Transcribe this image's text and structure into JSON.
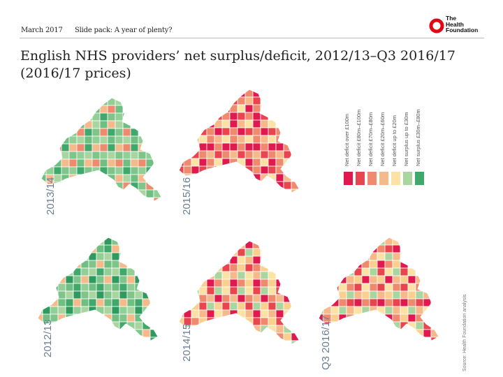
{
  "header": {
    "date": "March 2017",
    "slide_pack": "Slide pack: A year of plenty?",
    "logo_text": [
      "The",
      "Health",
      "Foundation"
    ]
  },
  "title": "English NHS providers’ net surplus/deficit, 2012/13–Q3 2016/17 (2016/17 prices)",
  "legend": [
    {
      "label": "Net deficit over £100m",
      "color": "#e01a4f"
    },
    {
      "label": "Net deficit £80m–£100m",
      "color": "#e8454e"
    },
    {
      "label": "Net deficit £70m–£80m",
      "color": "#ef8a6e"
    },
    {
      "label": "Net deficit £20m–£60m",
      "color": "#f6b98a"
    },
    {
      "label": "Net deficit up to £20m",
      "color": "#fde2a6"
    },
    {
      "label": "Net surplus up to £30m",
      "color": "#a9d6a0"
    },
    {
      "label": "Net surplus £30m–£80m",
      "color": "#3fa86a"
    }
  ],
  "maps": [
    {
      "period": "2013/14",
      "palette": [
        "#7fc58a",
        "#92cf96",
        "#a9d6a0",
        "#6fbf82",
        "#f6b98a",
        "#ef8a6e",
        "#3fa86a"
      ]
    },
    {
      "period": "2015/16",
      "palette": [
        "#e01a4f",
        "#e8454e",
        "#ef8a6e",
        "#f6b98a",
        "#fde2a6",
        "#e01a4f",
        "#ef8a6e"
      ]
    },
    {
      "period": "2012/13",
      "palette": [
        "#6fbf82",
        "#3fa86a",
        "#92cf96",
        "#a9d6a0",
        "#2e9a5e",
        "#7fc58a",
        "#f6b98a"
      ]
    },
    {
      "period": "2014/15",
      "palette": [
        "#fde2a6",
        "#f6b98a",
        "#e01a4f",
        "#ef8a6e",
        "#fbd08f",
        "#e8454e",
        "#a9d6a0"
      ]
    },
    {
      "period": "Q3 2016/17",
      "palette": [
        "#f6b98a",
        "#fbd08f",
        "#e01a4f",
        "#ef8a6e",
        "#e8454e",
        "#fde2a6",
        "#a9d6a0"
      ]
    }
  ],
  "source": "Source: Health Foundation analysis"
}
